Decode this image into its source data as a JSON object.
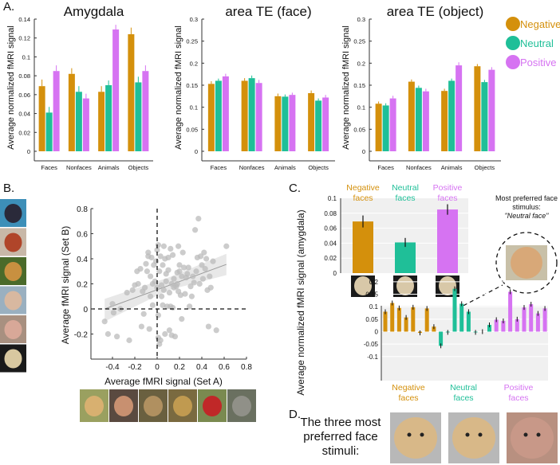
{
  "panel_labels": {
    "a": "A.",
    "b": "B.",
    "c": "C.",
    "d": "D."
  },
  "colors": {
    "negative": "#d4900c",
    "neutral": "#1fbf98",
    "positive": "#d673f2"
  },
  "legend": [
    "Negative",
    "Neutral",
    "Positive"
  ],
  "callout": {
    "line1": "Most preferred face stimulus:",
    "line2": "\"Neutral face\""
  },
  "panel_d": {
    "text": "The three most preferred face stimuli:"
  },
  "chart_data": [
    {
      "type": "bar",
      "title": "Amygdala",
      "ylabel": "Average normalized fMRI signal",
      "categories": [
        "Faces",
        "Nonfaces",
        "Animals",
        "Objects"
      ],
      "ylim": [
        0,
        0.14
      ],
      "yticks": [
        "0",
        "0.02",
        "0.04",
        "0.06",
        "0.08",
        "0.1",
        "0.12",
        "0.14"
      ],
      "series": [
        {
          "name": "Negative",
          "values": [
            0.069,
            0.082,
            0.063,
            0.124
          ],
          "err": [
            0.007,
            0.006,
            0.006,
            0.007
          ]
        },
        {
          "name": "Neutral",
          "values": [
            0.041,
            0.063,
            0.07,
            0.073
          ],
          "err": [
            0.006,
            0.006,
            0.005,
            0.006
          ]
        },
        {
          "name": "Positive",
          "values": [
            0.085,
            0.056,
            0.129,
            0.085
          ],
          "err": [
            0.006,
            0.005,
            0.005,
            0.006
          ]
        }
      ]
    },
    {
      "type": "bar",
      "title": "area TE (face)",
      "ylabel": "Average normalized fMRI signal",
      "categories": [
        "Faces",
        "Nonfaces",
        "Animals",
        "Objects"
      ],
      "ylim": [
        0,
        0.3
      ],
      "yticks": [
        "0",
        "0.05",
        "0.1",
        "0.15",
        "0.2",
        "0.25",
        "0.3"
      ],
      "series": [
        {
          "name": "Negative",
          "values": [
            0.153,
            0.16,
            0.125,
            0.132
          ],
          "err": [
            0.006,
            0.006,
            0.006,
            0.006
          ]
        },
        {
          "name": "Neutral",
          "values": [
            0.16,
            0.166,
            0.124,
            0.115
          ],
          "err": [
            0.005,
            0.006,
            0.005,
            0.005
          ]
        },
        {
          "name": "Positive",
          "values": [
            0.17,
            0.155,
            0.128,
            0.122
          ],
          "err": [
            0.006,
            0.007,
            0.005,
            0.006
          ]
        }
      ]
    },
    {
      "type": "bar",
      "title": "area TE (object)",
      "ylabel": "Average normalized fMRI signal",
      "categories": [
        "Faces",
        "Nonfaces",
        "Animals",
        "Objects"
      ],
      "ylim": [
        0,
        0.3
      ],
      "yticks": [
        "0",
        "0.05",
        "0.1",
        "0.15",
        "0.2",
        "0.25",
        "0.3"
      ],
      "series": [
        {
          "name": "Negative",
          "values": [
            0.108,
            0.158,
            0.137,
            0.193
          ],
          "err": [
            0.005,
            0.005,
            0.005,
            0.005
          ]
        },
        {
          "name": "Neutral",
          "values": [
            0.104,
            0.144,
            0.16,
            0.157
          ],
          "err": [
            0.005,
            0.005,
            0.005,
            0.005
          ]
        },
        {
          "name": "Positive",
          "values": [
            0.12,
            0.136,
            0.195,
            0.185
          ],
          "err": [
            0.006,
            0.006,
            0.007,
            0.006
          ]
        }
      ]
    },
    {
      "type": "scatter",
      "xlabel": "Average fMRI signal (Set A)",
      "ylabel": "Average fMRI signal (Set B)",
      "xlim": [
        -0.6,
        0.8
      ],
      "ylim": [
        -0.4,
        0.8
      ],
      "xticks": [
        "-0.4",
        "-0.2",
        "0",
        "0.2",
        "0.4",
        "0.6",
        "0.8"
      ],
      "yticks": [
        "-0.2",
        "0",
        "0.2",
        "0.4",
        "0.6",
        "0.8"
      ],
      "fit": {
        "x": [
          -0.47,
          0.62
        ],
        "y": [
          0.0,
          0.355
        ]
      },
      "points": [
        [
          -0.47,
          -0.1
        ],
        [
          -0.44,
          -0.2
        ],
        [
          -0.36,
          -0.22
        ],
        [
          -0.4,
          0.04
        ],
        [
          -0.33,
          0
        ],
        [
          -0.39,
          -0.03
        ],
        [
          -0.27,
          0.13
        ],
        [
          -0.25,
          -0.25
        ],
        [
          -0.2,
          0.19
        ],
        [
          -0.18,
          0.3
        ],
        [
          -0.17,
          0.2
        ],
        [
          -0.15,
          0.32
        ],
        [
          -0.14,
          -0.14
        ],
        [
          -0.13,
          0.14
        ],
        [
          -0.12,
          -0.04
        ],
        [
          -0.11,
          0.17
        ],
        [
          -0.1,
          0.36
        ],
        [
          -0.08,
          0.42
        ],
        [
          -0.08,
          0.45
        ],
        [
          -0.07,
          -0.16
        ],
        [
          -0.06,
          0.1
        ],
        [
          -0.06,
          0.26
        ],
        [
          -0.05,
          0.41
        ],
        [
          -0.04,
          0.2
        ],
        [
          -0.04,
          0.03
        ],
        [
          -0.03,
          0.35
        ],
        [
          -0.02,
          0.22
        ],
        [
          -0.01,
          0.38
        ],
        [
          0,
          0.17
        ],
        [
          0,
          0.47
        ],
        [
          0.01,
          0.51
        ],
        [
          0.01,
          -0.05
        ],
        [
          0.01,
          -0.23
        ],
        [
          0.02,
          -0.28
        ],
        [
          0.02,
          0.3
        ],
        [
          0.03,
          0.42
        ],
        [
          0.03,
          -0.25
        ],
        [
          0.04,
          0.1
        ],
        [
          0.04,
          0.19
        ],
        [
          0.05,
          0.35
        ],
        [
          0.05,
          0.03
        ],
        [
          0.06,
          0.15
        ],
        [
          0.07,
          0.4
        ],
        [
          0.07,
          -0.2
        ],
        [
          0.08,
          0.22
        ],
        [
          0.08,
          0.28
        ],
        [
          0.09,
          0.02
        ],
        [
          0.1,
          0.41
        ],
        [
          0.1,
          0.31
        ],
        [
          0.11,
          -0.17
        ],
        [
          0.11,
          0.13
        ],
        [
          0.12,
          0.48
        ],
        [
          0.12,
          0.02
        ],
        [
          0.13,
          0.2
        ],
        [
          0.13,
          -0.21
        ],
        [
          0.14,
          0.43
        ],
        [
          0.14,
          0.01
        ],
        [
          0.15,
          0.24
        ],
        [
          0.15,
          0.17
        ],
        [
          0.16,
          -0.22
        ],
        [
          0.17,
          0.18
        ],
        [
          0.18,
          0.29
        ],
        [
          0.18,
          0.2
        ],
        [
          0.19,
          0.5
        ],
        [
          0.19,
          0.14
        ],
        [
          0.2,
          0.35
        ],
        [
          0.21,
          0.11
        ],
        [
          0.22,
          0.26
        ],
        [
          0.22,
          -0.08
        ],
        [
          0.23,
          0.45
        ],
        [
          0.24,
          0.33
        ],
        [
          0.25,
          0.12
        ],
        [
          0.26,
          0.25
        ],
        [
          0.27,
          0.28
        ],
        [
          0.28,
          0.33
        ],
        [
          0.29,
          0.02
        ],
        [
          0.3,
          0.18
        ],
        [
          0.31,
          0.1
        ],
        [
          0.32,
          0.26
        ],
        [
          0.33,
          0.21
        ],
        [
          0.34,
          0.63
        ],
        [
          0.35,
          0.3
        ],
        [
          0.36,
          0.41
        ],
        [
          0.37,
          0.72
        ],
        [
          0.38,
          0.2
        ],
        [
          0.39,
          0.42
        ],
        [
          0.4,
          0.35
        ],
        [
          0.41,
          0.24
        ],
        [
          0.42,
          0.45
        ],
        [
          0.43,
          0.32
        ],
        [
          0.44,
          0.4
        ],
        [
          0.45,
          0.15
        ],
        [
          0.46,
          -0.14
        ],
        [
          0.47,
          0.26
        ],
        [
          0.48,
          0.17
        ],
        [
          0.5,
          0.38
        ],
        [
          0.53,
          -0.17
        ],
        [
          0.62,
          0.5
        ],
        [
          -0.22,
          0.15
        ],
        [
          -0.09,
          0.3
        ],
        [
          0.06,
          0.5
        ],
        [
          0.2,
          0.3
        ]
      ]
    },
    {
      "type": "bar",
      "ylabel": "Average normalized fMRI signal (amygdala)",
      "categories": [
        "Negative faces",
        "Neutral faces",
        "Positive faces"
      ],
      "category_lines": [
        [
          "Negative",
          "faces"
        ],
        [
          "Neutral",
          "faces"
        ],
        [
          "Positive",
          "faces"
        ]
      ],
      "ylim": [
        0,
        0.1
      ],
      "yticks": [
        "0",
        "0.02",
        "0.04",
        "0.06",
        "0.08",
        "0.1"
      ],
      "values": [
        0.069,
        0.041,
        0.085
      ],
      "err": [
        0.008,
        0.006,
        0.007
      ]
    },
    {
      "type": "bar",
      "group_lines": [
        [
          "Negative",
          "faces"
        ],
        [
          "Neutral",
          "faces"
        ],
        [
          "Positive",
          "faces"
        ]
      ],
      "ylim": [
        -0.1,
        0.2
      ],
      "yticks": [
        "-0.1",
        "-0.05",
        "0",
        "0.05",
        "0.1",
        "0.15",
        "0.2"
      ],
      "groups": [
        {
          "name": "Negative faces",
          "values": [
            0.08,
            0.115,
            0.095,
            0.057,
            0.098,
            -0.005,
            0.093,
            0.02
          ]
        },
        {
          "name": "Neutral faces",
          "values": [
            -0.057,
            -0.003,
            0.172,
            0.112,
            0.08,
            -0.003,
            0.0,
            0.027
          ]
        },
        {
          "name": "Positive faces",
          "values": [
            0.048,
            0.043,
            0.16,
            0.05,
            0.097,
            0.11,
            0.073,
            0.093
          ]
        }
      ]
    }
  ]
}
